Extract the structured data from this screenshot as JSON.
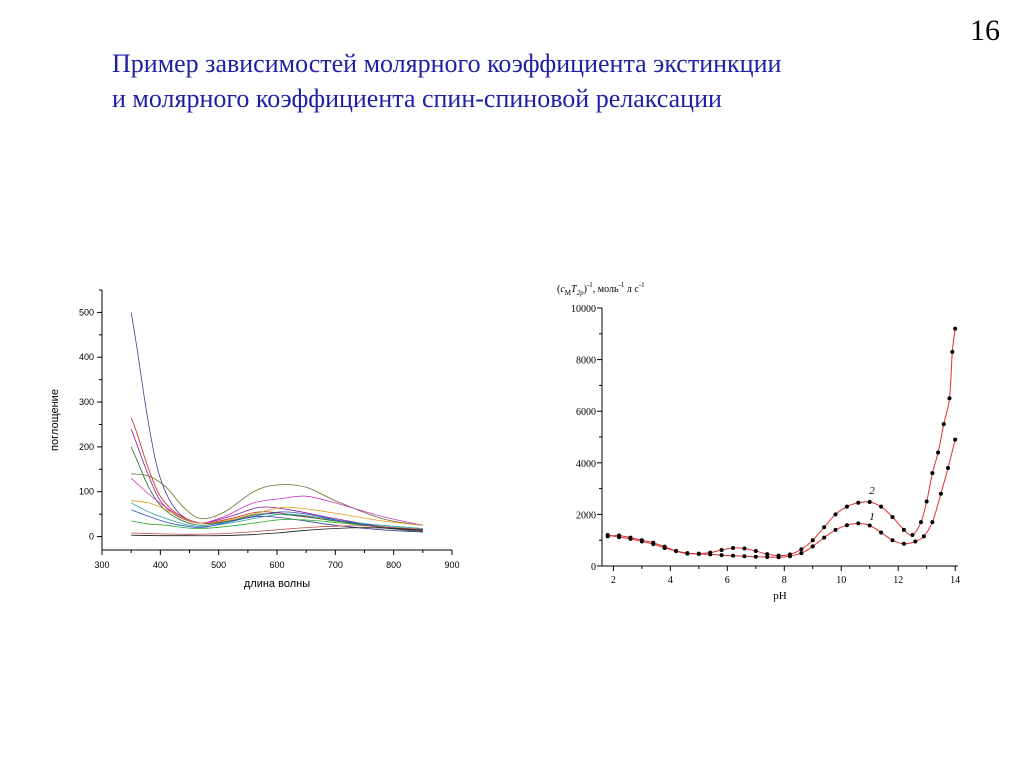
{
  "slide": {
    "number": "16",
    "title_line1": "Пример зависимостей молярного коэффициента экстинкции",
    "title_line2": "и молярного коэффициента спин-спиновой релаксации"
  },
  "chart_data": [
    {
      "type": "line",
      "xlabel": "длина волны",
      "ylabel": "поглощение",
      "xlim": [
        300,
        900
      ],
      "ylim": [
        -30,
        550
      ],
      "x_ticks": [
        300,
        400,
        500,
        600,
        700,
        800,
        900
      ],
      "y_ticks": [
        0,
        100,
        200,
        300,
        400,
        500
      ],
      "legend": "none",
      "grid": false,
      "series": [
        {
          "color": "#3d3d99",
          "x": [
            350,
            360,
            380,
            400,
            430,
            470,
            520,
            570,
            620,
            700,
            780,
            850
          ],
          "values": [
            500,
            420,
            250,
            130,
            55,
            30,
            35,
            45,
            40,
            25,
            15,
            10
          ]
        },
        {
          "color": "#cc2222",
          "x": [
            350,
            360,
            380,
            400,
            430,
            470,
            520,
            570,
            620,
            700,
            780,
            850
          ],
          "values": [
            265,
            230,
            150,
            90,
            50,
            30,
            40,
            55,
            50,
            35,
            20,
            12
          ]
        },
        {
          "color": "#8a1a8a",
          "x": [
            350,
            360,
            380,
            400,
            430,
            470,
            520,
            570,
            620,
            700,
            780,
            850
          ],
          "values": [
            240,
            205,
            135,
            80,
            45,
            30,
            45,
            65,
            60,
            40,
            22,
            12
          ]
        },
        {
          "color": "#2a6e2a",
          "x": [
            350,
            360,
            380,
            400,
            430,
            470,
            520,
            570,
            620,
            700,
            780,
            850
          ],
          "values": [
            200,
            170,
            110,
            70,
            40,
            25,
            35,
            50,
            48,
            35,
            20,
            10
          ]
        },
        {
          "color": "#6b6b2a",
          "x": [
            350,
            380,
            410,
            440,
            470,
            510,
            560,
            600,
            650,
            700,
            780,
            850
          ],
          "values": [
            140,
            135,
            110,
            65,
            40,
            55,
            100,
            115,
            110,
            80,
            40,
            25
          ]
        },
        {
          "color": "#cc33cc",
          "x": [
            350,
            380,
            410,
            440,
            470,
            510,
            560,
            610,
            650,
            700,
            780,
            850
          ],
          "values": [
            130,
            95,
            65,
            40,
            30,
            45,
            75,
            85,
            90,
            75,
            45,
            25
          ]
        },
        {
          "color": "#d4a017",
          "x": [
            350,
            380,
            410,
            440,
            470,
            510,
            560,
            610,
            660,
            710,
            780,
            850
          ],
          "values": [
            80,
            75,
            60,
            40,
            30,
            35,
            50,
            65,
            60,
            50,
            35,
            25
          ]
        },
        {
          "color": "#2aa3a3",
          "x": [
            350,
            380,
            410,
            440,
            470,
            510,
            560,
            610,
            660,
            710,
            780,
            850
          ],
          "values": [
            75,
            55,
            40,
            28,
            22,
            28,
            40,
            50,
            45,
            35,
            25,
            18
          ]
        },
        {
          "color": "#22aa22",
          "x": [
            350,
            380,
            410,
            440,
            470,
            510,
            560,
            610,
            660,
            710,
            780,
            850
          ],
          "values": [
            35,
            28,
            25,
            20,
            18,
            22,
            30,
            38,
            36,
            30,
            22,
            16
          ]
        },
        {
          "color": "#2b4fd1",
          "x": [
            350,
            380,
            410,
            440,
            470,
            510,
            560,
            610,
            660,
            710,
            780,
            850
          ],
          "values": [
            60,
            45,
            32,
            24,
            20,
            30,
            45,
            55,
            48,
            35,
            22,
            14
          ]
        },
        {
          "color": "#1a1a1a",
          "x": [
            350,
            400,
            450,
            500,
            550,
            600,
            650,
            700,
            750,
            800,
            850
          ],
          "values": [
            3,
            2,
            2,
            2,
            4,
            8,
            14,
            18,
            20,
            18,
            15
          ]
        },
        {
          "color": "#c44a4a",
          "x": [
            350,
            400,
            450,
            500,
            550,
            600,
            650,
            700,
            750,
            800,
            850
          ],
          "values": [
            8,
            6,
            5,
            6,
            10,
            15,
            20,
            23,
            24,
            20,
            16
          ]
        }
      ]
    },
    {
      "type": "line",
      "title": "(cMT2p)-1, моль-1 л с-1",
      "title_parts": {
        "open": "(",
        "c": "c",
        "c_sub": "M",
        "t": "T",
        "t_sub": "2p",
        "close": ")",
        "exp1": "-1",
        "unit_a": ", моль",
        "exp2": "-1",
        "unit_b": " л с",
        "exp3": "-1"
      },
      "xlabel": "pH",
      "ylabel": "",
      "xlim": [
        1.6,
        14.1
      ],
      "ylim": [
        0,
        10000
      ],
      "x_ticks": [
        2,
        4,
        6,
        8,
        10,
        12,
        14
      ],
      "y_ticks": [
        0,
        2000,
        4000,
        6000,
        8000,
        10000
      ],
      "legend": "none",
      "grid": false,
      "line_color": "#e03030",
      "point_color": "#000000",
      "annotations": [
        {
          "text": "1",
          "x": 10.8,
          "y": 1780
        },
        {
          "text": "2",
          "x": 10.8,
          "y": 2800
        }
      ],
      "series": [
        {
          "name": "1",
          "x": [
            1.8,
            2.2,
            2.6,
            3.0,
            3.4,
            3.8,
            4.2,
            4.6,
            5.0,
            5.4,
            5.8,
            6.2,
            6.6,
            7.0,
            7.4,
            7.8,
            8.2,
            8.6,
            9.0,
            9.4,
            9.8,
            10.2,
            10.6,
            11.0,
            11.4,
            11.8,
            12.2,
            12.6,
            12.9,
            13.2,
            13.5,
            13.75,
            14.0
          ],
          "values": [
            1200,
            1120,
            1050,
            950,
            850,
            700,
            580,
            500,
            470,
            450,
            420,
            400,
            380,
            360,
            350,
            340,
            380,
            500,
            760,
            1100,
            1400,
            1580,
            1650,
            1570,
            1300,
            1000,
            860,
            950,
            1150,
            1700,
            2800,
            3800,
            4900
          ]
        },
        {
          "name": "2",
          "x": [
            1.8,
            2.2,
            2.6,
            3.0,
            3.4,
            3.8,
            4.2,
            4.6,
            5.0,
            5.4,
            5.8,
            6.2,
            6.6,
            7.0,
            7.4,
            7.8,
            8.2,
            8.6,
            9.0,
            9.4,
            9.8,
            10.2,
            10.6,
            11.0,
            11.4,
            11.8,
            12.2,
            12.5,
            12.8,
            13.0,
            13.2,
            13.4,
            13.6,
            13.8,
            13.9,
            14.0
          ],
          "values": [
            1150,
            1180,
            1100,
            1000,
            900,
            750,
            580,
            480,
            480,
            520,
            620,
            700,
            680,
            580,
            460,
            400,
            450,
            650,
            1000,
            1500,
            2000,
            2300,
            2450,
            2480,
            2300,
            1900,
            1400,
            1200,
            1700,
            2500,
            3600,
            4400,
            5500,
            6500,
            8300,
            9200
          ]
        }
      ]
    }
  ]
}
